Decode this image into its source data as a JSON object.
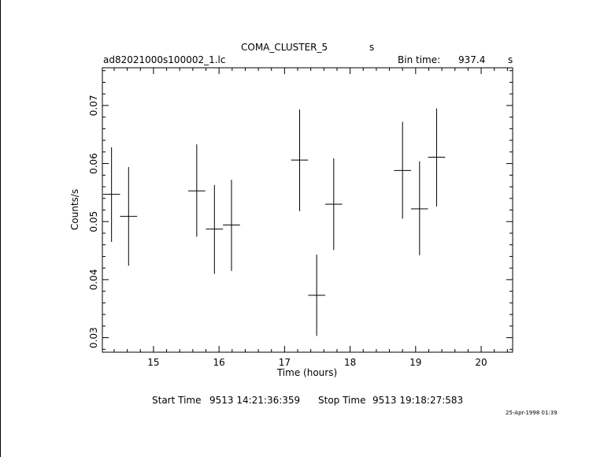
{
  "header": {
    "object": "COMA_CLUSTER_5",
    "object_suffix": "s",
    "filename": "ad82021000s100002_1.lc",
    "bin_label": "Bin time:",
    "bin_value": "937.4",
    "bin_unit": "s"
  },
  "footer": {
    "start_label": "Start Time",
    "start_value": "9513 14:21:36:359",
    "stop_label": "Stop Time",
    "stop_value": "9513 19:18:27:583",
    "timestamp": "25-Apr-1998 01:39"
  },
  "chart_data": {
    "type": "scatter",
    "xlabel": "Time (hours)",
    "ylabel": "Counts/s",
    "xlim": [
      14.22,
      20.48
    ],
    "ylim": [
      0.0275,
      0.0765
    ],
    "xticks": [
      15,
      16,
      17,
      18,
      19,
      20
    ],
    "xtick_labels": [
      "15",
      "16",
      "17",
      "18",
      "19",
      "20"
    ],
    "yticks": [
      0.03,
      0.04,
      0.05,
      0.06,
      0.07
    ],
    "ytick_labels": [
      "0.03",
      "0.04",
      "0.05",
      "0.06",
      "0.07"
    ],
    "x_half_width": 0.13,
    "points": [
      {
        "x": 14.36,
        "y": 0.0547,
        "ylo": 0.0465,
        "yhi": 0.0628
      },
      {
        "x": 14.62,
        "y": 0.0509,
        "ylo": 0.0424,
        "yhi": 0.0594
      },
      {
        "x": 15.66,
        "y": 0.0553,
        "ylo": 0.0474,
        "yhi": 0.0633
      },
      {
        "x": 15.93,
        "y": 0.0487,
        "ylo": 0.041,
        "yhi": 0.0563
      },
      {
        "x": 16.19,
        "y": 0.0494,
        "ylo": 0.0415,
        "yhi": 0.0572
      },
      {
        "x": 17.23,
        "y": 0.0606,
        "ylo": 0.0518,
        "yhi": 0.0693
      },
      {
        "x": 17.49,
        "y": 0.0373,
        "ylo": 0.0303,
        "yhi": 0.0443
      },
      {
        "x": 17.75,
        "y": 0.053,
        "ylo": 0.0451,
        "yhi": 0.0609
      },
      {
        "x": 18.8,
        "y": 0.0588,
        "ylo": 0.0505,
        "yhi": 0.0672
      },
      {
        "x": 19.06,
        "y": 0.0522,
        "ylo": 0.0442,
        "yhi": 0.0604
      },
      {
        "x": 19.32,
        "y": 0.0611,
        "ylo": 0.0526,
        "yhi": 0.0695
      }
    ]
  }
}
